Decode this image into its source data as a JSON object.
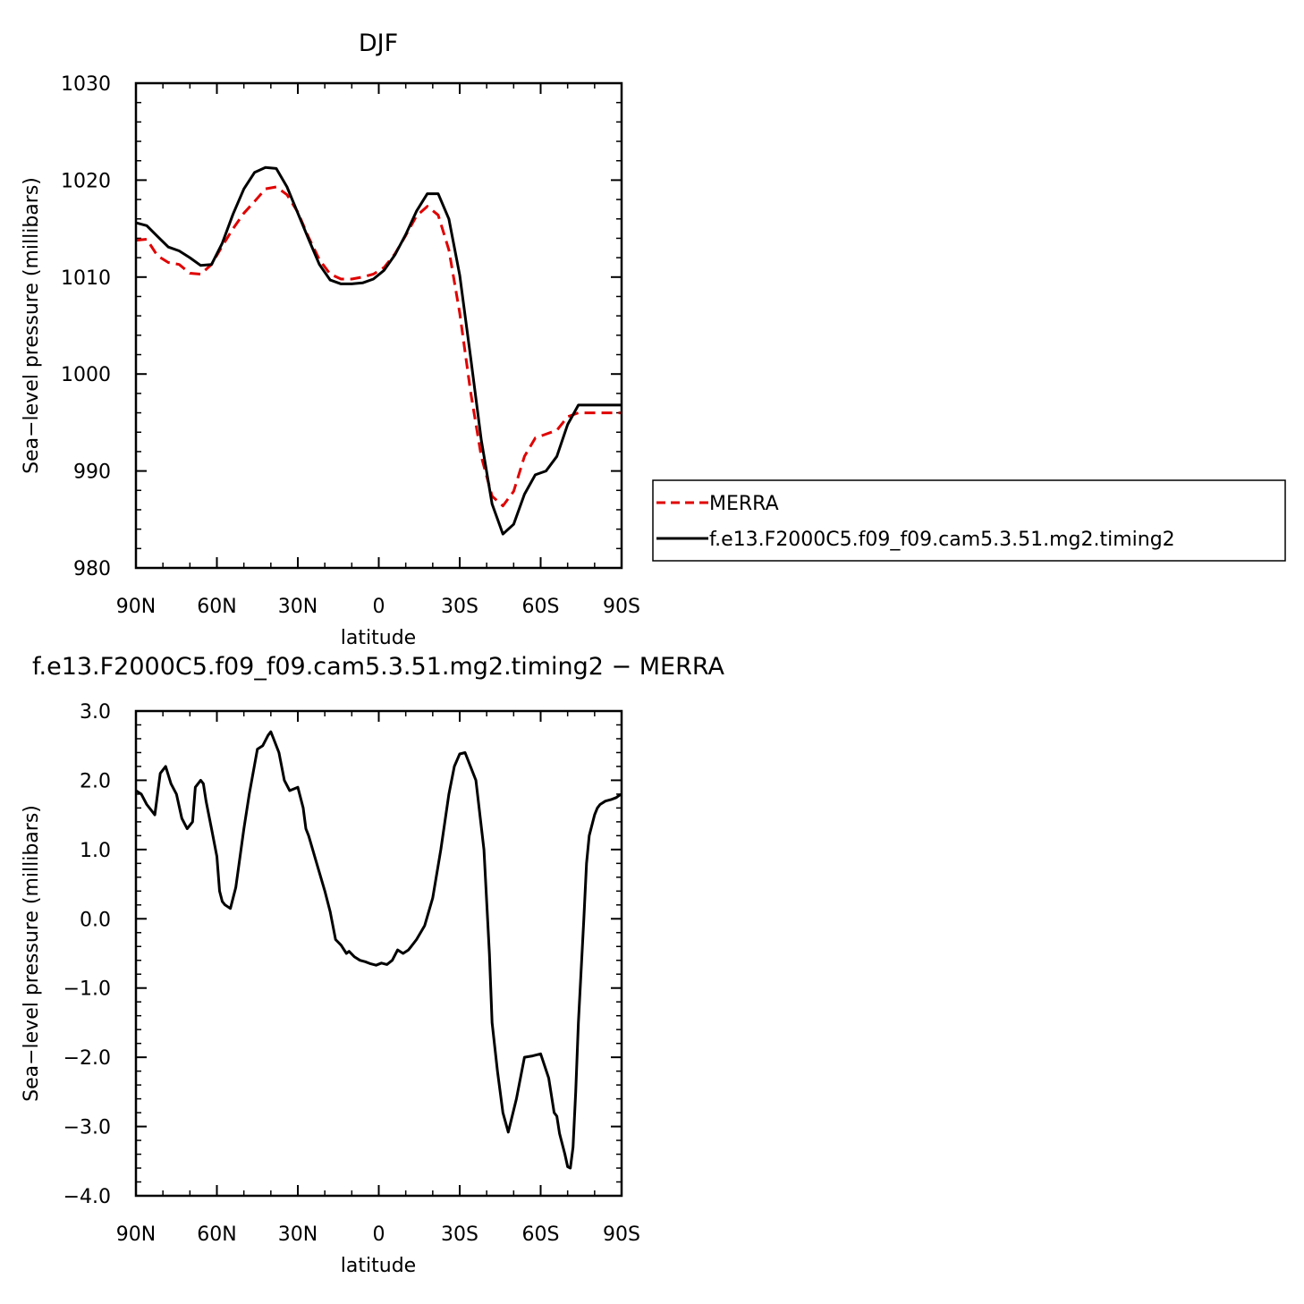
{
  "chart_data": [
    {
      "type": "line",
      "title": "DJF",
      "xlabel": "latitude",
      "ylabel": "Sea−level pressure (millibars)",
      "xlim": [
        90,
        -90
      ],
      "ylim": [
        980,
        1030
      ],
      "x_ticks": [
        {
          "value": 90,
          "label": "90N"
        },
        {
          "value": 60,
          "label": "60N"
        },
        {
          "value": 30,
          "label": "30N"
        },
        {
          "value": 0,
          "label": "0"
        },
        {
          "value": -30,
          "label": "30S"
        },
        {
          "value": -60,
          "label": "60S"
        },
        {
          "value": -90,
          "label": "90S"
        }
      ],
      "y_ticks": [
        {
          "value": 980,
          "label": "980"
        },
        {
          "value": 990,
          "label": "990"
        },
        {
          "value": 1000,
          "label": "1000"
        },
        {
          "value": 1010,
          "label": "1010"
        },
        {
          "value": 1020,
          "label": "1020"
        },
        {
          "value": 1030,
          "label": "1030"
        }
      ],
      "legend_position": "right",
      "series": [
        {
          "name": "MERRA",
          "color": "#e00000",
          "dash": true,
          "x": [
            90,
            86,
            82,
            78,
            74,
            70,
            66,
            62,
            58,
            54,
            50,
            46,
            42,
            38,
            34,
            30,
            26,
            22,
            18,
            14,
            10,
            6,
            2,
            -2,
            -6,
            -10,
            -14,
            -18,
            -22,
            -26,
            -30,
            -34,
            -38,
            -42,
            -46,
            -50,
            -54,
            -58,
            -62,
            -66,
            -70,
            -74,
            -78,
            -82,
            -86,
            -90
          ],
          "y": [
            1013.8,
            1013.9,
            1012.2,
            1011.5,
            1011.3,
            1010.4,
            1010.3,
            1011.3,
            1013.2,
            1015.0,
            1016.6,
            1017.8,
            1019.1,
            1019.3,
            1018.5,
            1016.7,
            1014.1,
            1011.8,
            1010.3,
            1009.8,
            1009.8,
            1010.0,
            1010.3,
            1011.0,
            1012.4,
            1014.3,
            1016.3,
            1017.3,
            1016.4,
            1012.8,
            1006.3,
            998.2,
            991.5,
            987.4,
            986.4,
            987.9,
            991.5,
            993.4,
            993.8,
            994.2,
            995.6,
            996.0,
            996.0,
            996.0,
            996.0,
            996.0
          ]
        },
        {
          "name": "f.e13.F2000C5.f09_f09.cam5.3.51.mg2.timing2",
          "color": "#000000",
          "dash": false,
          "x": [
            90,
            86,
            82,
            78,
            74,
            70,
            66,
            62,
            58,
            54,
            50,
            46,
            42,
            38,
            34,
            30,
            26,
            22,
            18,
            14,
            10,
            6,
            2,
            -2,
            -6,
            -10,
            -14,
            -18,
            -22,
            -26,
            -30,
            -34,
            -38,
            -42,
            -46,
            -50,
            -54,
            -58,
            -62,
            -66,
            -70,
            -74,
            -78,
            -82,
            -86,
            -90
          ],
          "y": [
            1015.6,
            1015.3,
            1014.2,
            1013.1,
            1012.7,
            1012.0,
            1011.2,
            1011.3,
            1013.5,
            1016.5,
            1019.1,
            1020.8,
            1021.3,
            1021.2,
            1019.3,
            1016.6,
            1013.9,
            1011.3,
            1009.7,
            1009.3,
            1009.3,
            1009.4,
            1009.8,
            1010.7,
            1012.3,
            1014.4,
            1016.8,
            1018.6,
            1018.6,
            1016.0,
            1010.2,
            1001.8,
            993.2,
            986.6,
            983.5,
            984.5,
            987.6,
            989.6,
            990.0,
            991.5,
            994.8,
            996.8,
            996.8,
            996.8,
            996.8,
            996.8
          ]
        }
      ]
    },
    {
      "type": "line",
      "title": "f.e13.F2000C5.f09_f09.cam5.3.51.mg2.timing2 − MERRA",
      "xlabel": "latitude",
      "ylabel": "Sea−level pressure (millibars)",
      "xlim": [
        90,
        -90
      ],
      "ylim": [
        -4.0,
        3.0
      ],
      "x_ticks": [
        {
          "value": 90,
          "label": "90N"
        },
        {
          "value": 60,
          "label": "60N"
        },
        {
          "value": 30,
          "label": "30N"
        },
        {
          "value": 0,
          "label": "0"
        },
        {
          "value": -30,
          "label": "30S"
        },
        {
          "value": -60,
          "label": "60S"
        },
        {
          "value": -90,
          "label": "90S"
        }
      ],
      "y_ticks": [
        {
          "value": -4.0,
          "label": "−4.0"
        },
        {
          "value": -3.0,
          "label": "−3.0"
        },
        {
          "value": -2.0,
          "label": "−2.0"
        },
        {
          "value": -1.0,
          "label": "−1.0"
        },
        {
          "value": 0.0,
          "label": "0.0"
        },
        {
          "value": 1.0,
          "label": "1.0"
        },
        {
          "value": 2.0,
          "label": "2.0"
        },
        {
          "value": 3.0,
          "label": "3.0"
        }
      ],
      "series": [
        {
          "color": "#000000",
          "dash": false,
          "x": [
            90,
            88,
            86,
            83,
            81,
            79,
            77,
            75,
            73,
            71,
            69,
            68,
            66,
            65,
            64,
            62,
            60,
            59,
            58,
            57,
            55,
            53,
            50,
            48,
            45,
            43,
            41,
            40,
            39,
            37,
            36,
            35,
            33,
            30,
            28,
            27,
            26,
            23,
            20,
            18,
            16,
            14,
            12,
            11,
            9,
            7,
            5,
            3,
            1,
            -1,
            -3,
            -5,
            -7,
            -9,
            -11,
            -12,
            -14,
            -17,
            -20,
            -23,
            -26,
            -28,
            -30,
            -32,
            -36,
            -39,
            -41,
            -42,
            -44,
            -46,
            -48,
            -51,
            -54,
            -57,
            -60,
            -63,
            -65,
            -66,
            -67,
            -69,
            -70,
            -71,
            -72,
            -73,
            -74,
            -76,
            -77,
            -78,
            -80,
            -81,
            -82,
            -84,
            -86,
            -88,
            -89,
            -90
          ],
          "y": [
            1.85,
            1.8,
            1.65,
            1.5,
            2.1,
            2.2,
            1.95,
            1.8,
            1.45,
            1.3,
            1.4,
            1.9,
            2.0,
            1.95,
            1.7,
            1.3,
            0.9,
            0.4,
            0.25,
            0.2,
            0.15,
            0.45,
            1.3,
            1.8,
            2.45,
            2.5,
            2.65,
            2.7,
            2.6,
            2.4,
            2.2,
            2.0,
            1.85,
            1.9,
            1.6,
            1.3,
            1.2,
            0.8,
            0.4,
            0.1,
            -0.3,
            -0.38,
            -0.5,
            -0.47,
            -0.55,
            -0.6,
            -0.62,
            -0.65,
            -0.67,
            -0.64,
            -0.66,
            -0.6,
            -0.45,
            -0.5,
            -0.45,
            -0.4,
            -0.3,
            -0.1,
            0.3,
            1.0,
            1.8,
            2.2,
            2.38,
            2.4,
            2.0,
            1.0,
            -0.5,
            -1.5,
            -2.2,
            -2.8,
            -3.08,
            -2.6,
            -2.0,
            -1.98,
            -1.95,
            -2.3,
            -2.8,
            -2.85,
            -3.1,
            -3.4,
            -3.58,
            -3.6,
            -3.3,
            -2.5,
            -1.5,
            0.0,
            0.8,
            1.2,
            1.5,
            1.6,
            1.65,
            1.7,
            1.72,
            1.75,
            1.78,
            1.8
          ]
        }
      ]
    }
  ]
}
